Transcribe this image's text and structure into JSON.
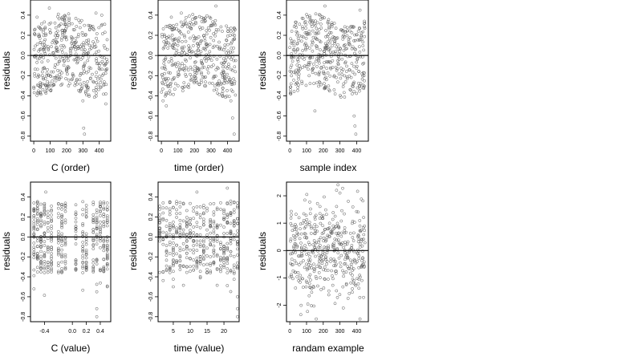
{
  "chart_data": [
    {
      "type": "scatter",
      "xlabel": "C (order)",
      "ylabel": "residuals",
      "xlim": [
        -20,
        470
      ],
      "ylim": [
        -0.85,
        0.55
      ],
      "xticks": [
        0,
        100,
        200,
        300,
        400
      ],
      "yticks": [
        -0.8,
        -0.6,
        -0.4,
        -0.2,
        0.0,
        0.2,
        0.4
      ],
      "ytick_labels": [
        "-0.8",
        "-0.6",
        "-0.4",
        "-0.2",
        "0.0",
        "0.2",
        "0.4"
      ],
      "hline": 0,
      "grid": false,
      "pattern": "order",
      "n_points": 440,
      "seed": 11,
      "points_sample": [
        [
          5,
          -0.18
        ],
        [
          20,
          0.38
        ],
        [
          40,
          -0.27
        ],
        [
          95,
          0.47
        ],
        [
          150,
          0.41
        ],
        [
          300,
          -0.45
        ],
        [
          305,
          -0.72
        ],
        [
          310,
          -0.78
        ],
        [
          380,
          0.42
        ],
        [
          415,
          0.4
        ],
        [
          440,
          -0.48
        ]
      ]
    },
    {
      "type": "scatter",
      "xlabel": "time (order)",
      "ylabel": "residuals",
      "xlim": [
        -20,
        470
      ],
      "ylim": [
        -0.85,
        0.55
      ],
      "xticks": [
        0,
        100,
        200,
        300,
        400
      ],
      "yticks": [
        -0.8,
        -0.6,
        -0.4,
        -0.2,
        0.0,
        0.2,
        0.4
      ],
      "ytick_labels": [
        "-0.8",
        "-0.6",
        "-0.4",
        "-0.2",
        "0.0",
        "0.2",
        "0.4"
      ],
      "hline": 0,
      "grid": false,
      "pattern": "order",
      "n_points": 440,
      "seed": 23,
      "points_sample": [
        [
          10,
          -0.45
        ],
        [
          30,
          -0.5
        ],
        [
          60,
          0.38
        ],
        [
          120,
          0.42
        ],
        [
          330,
          0.49
        ],
        [
          420,
          -0.45
        ],
        [
          430,
          -0.62
        ],
        [
          440,
          -0.78
        ]
      ]
    },
    {
      "type": "scatter",
      "xlabel": "sample index",
      "ylabel": "residuals",
      "xlim": [
        -20,
        470
      ],
      "ylim": [
        -0.85,
        0.55
      ],
      "xticks": [
        0,
        100,
        200,
        300,
        400
      ],
      "yticks": [
        -0.8,
        -0.6,
        -0.4,
        -0.2,
        0.0,
        0.2,
        0.4
      ],
      "ytick_labels": [
        "-0.8",
        "-0.6",
        "-0.4",
        "-0.2",
        "0.0",
        "0.2",
        "0.4"
      ],
      "hline": 0,
      "grid": false,
      "pattern": "order",
      "n_points": 440,
      "seed": 37,
      "points_sample": [
        [
          150,
          -0.55
        ],
        [
          210,
          0.49
        ],
        [
          385,
          -0.6
        ],
        [
          390,
          -0.7
        ],
        [
          395,
          -0.78
        ],
        [
          420,
          0.45
        ]
      ]
    },
    {
      "type": "scatter",
      "xlabel": "C (value)",
      "ylabel": "residuals",
      "xlim": [
        -0.6,
        0.55
      ],
      "ylim": [
        -0.85,
        0.55
      ],
      "xticks": [
        -0.4,
        0.0,
        0.2,
        0.4
      ],
      "xtick_labels": [
        "-0.4",
        "0.0",
        "0.2",
        "0.4"
      ],
      "yticks": [
        -0.8,
        -0.6,
        -0.4,
        -0.2,
        0.0,
        0.2,
        0.4
      ],
      "ytick_labels": [
        "-0.8",
        "-0.6",
        "-0.4",
        "-0.2",
        "0.0",
        "0.2",
        "0.4"
      ],
      "hline": 0,
      "grid": false,
      "pattern": "columns",
      "x_levels": [
        -0.55,
        -0.5,
        -0.45,
        -0.4,
        -0.35,
        -0.3,
        -0.2,
        -0.15,
        -0.1,
        0.05,
        0.15,
        0.2,
        0.3,
        0.35,
        0.4,
        0.45,
        0.5
      ],
      "n_points": 440,
      "seed": 51,
      "points_sample": [
        [
          -0.38,
          0.45
        ],
        [
          0.35,
          -0.55
        ],
        [
          0.35,
          -0.72
        ],
        [
          0.35,
          -0.8
        ],
        [
          0.5,
          -0.5
        ]
      ]
    },
    {
      "type": "scatter",
      "xlabel": "time (value)",
      "ylabel": "residuals",
      "xlim": [
        0.5,
        24.5
      ],
      "ylim": [
        -0.85,
        0.55
      ],
      "xticks": [
        5,
        10,
        15,
        20
      ],
      "yticks": [
        -0.8,
        -0.6,
        -0.4,
        -0.2,
        0.0,
        0.2,
        0.4
      ],
      "ytick_labels": [
        "-0.8",
        "-0.6",
        "-0.4",
        "-0.2",
        "0.0",
        "0.2",
        "0.4"
      ],
      "hline": 0,
      "grid": false,
      "pattern": "columns",
      "x_levels": [
        1,
        2,
        3,
        4,
        5,
        6,
        7,
        8,
        9,
        10,
        11,
        12,
        13,
        14,
        15,
        16,
        17,
        18,
        19,
        20,
        21,
        22,
        23,
        24
      ],
      "n_points": 440,
      "seed": 67,
      "points_sample": [
        [
          5,
          -0.5
        ],
        [
          12,
          0.45
        ],
        [
          21,
          0.49
        ],
        [
          24,
          -0.6
        ],
        [
          24,
          -0.72
        ],
        [
          24,
          -0.8
        ]
      ]
    },
    {
      "type": "scatter",
      "xlabel": "randam example",
      "ylabel": "residuals",
      "xlim": [
        -20,
        470
      ],
      "ylim": [
        -2.6,
        2.5
      ],
      "xticks": [
        0,
        100,
        200,
        300,
        400
      ],
      "yticks": [
        -2,
        -1,
        0,
        1,
        2
      ],
      "ytick_labels": [
        "-2",
        "-1",
        "0",
        "1",
        "2"
      ],
      "hline": 0,
      "grid": false,
      "pattern": "normal",
      "n_points": 440,
      "seed": 83,
      "points_sample": [
        [
          280,
          2.2
        ],
        [
          300,
          2.1
        ],
        [
          350,
          1.8
        ],
        [
          320,
          -2.1
        ],
        [
          420,
          -2.5
        ]
      ]
    }
  ]
}
